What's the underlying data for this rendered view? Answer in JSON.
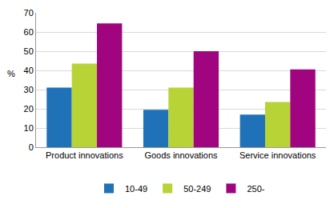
{
  "chart_data": {
    "type": "bar",
    "categories": [
      "Product innovations",
      "Goods innovations",
      "Service innovations"
    ],
    "series": [
      {
        "name": "10-49",
        "color": "#1f71b8",
        "values": [
          31,
          19.5,
          17
        ]
      },
      {
        "name": "50-249",
        "color": "#b8d335",
        "values": [
          43.5,
          31,
          23.5
        ]
      },
      {
        "name": "250-",
        "color": "#a0047f",
        "values": [
          64.5,
          50,
          40.5
        ]
      }
    ],
    "ylabel": "%",
    "ylim": [
      0,
      70
    ],
    "yticks": [
      0,
      10,
      20,
      30,
      40,
      50,
      60,
      70
    ],
    "grid": true,
    "legend": "bottom"
  }
}
